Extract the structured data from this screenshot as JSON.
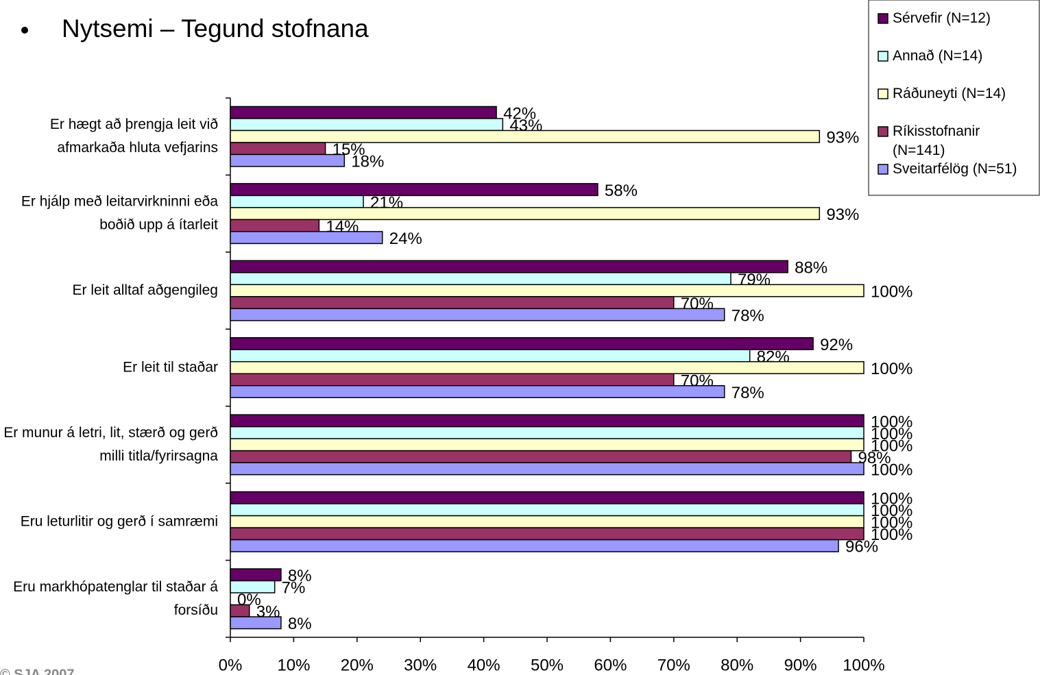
{
  "chart_data": {
    "type": "bar",
    "orientation": "horizontal",
    "title": "Nytsemi – Tegund stofnana",
    "footer": "© SJA 2007",
    "categories": [
      "Er hægt að þrengja leit við afmarkaða hluta vefjarins",
      "Er hjálp með leitarvirkninni eða boðið upp á ítarleit",
      "Er leit alltaf aðgengileg",
      "Er leit til staðar",
      "Er munur á letri, lit, stærð og gerð milli titla/fyrirsagna",
      "Eru leturlitir og gerð í samræmi",
      "Eru markhópatenglar til staðar á forsíðu"
    ],
    "series": [
      {
        "name": "Sérvefir (N=12)",
        "color": "#660066",
        "values": [
          42,
          58,
          88,
          92,
          100,
          100,
          8
        ],
        "value_labels": [
          "42%",
          "58%",
          "88%",
          "92%",
          "100%",
          "100%",
          "8%"
        ]
      },
      {
        "name": "Annað (N=14)",
        "color": "#ccffff",
        "values": [
          43,
          21,
          79,
          82,
          100,
          100,
          7
        ],
        "value_labels": [
          "43%",
          "21%",
          "79%",
          "82%",
          "100%",
          "100%",
          "7%"
        ]
      },
      {
        "name": "Ráðuneyti (N=14)",
        "color": "#ffffcc",
        "values": [
          93,
          93,
          100,
          100,
          100,
          100,
          0
        ],
        "value_labels": [
          "93%",
          "93%",
          "100%",
          "100%",
          "100%",
          "100%",
          "0%"
        ]
      },
      {
        "name": "Ríkisstofnanir (N=141)",
        "color": "#993366",
        "values": [
          15,
          14,
          70,
          70,
          98,
          100,
          3
        ],
        "value_labels": [
          "15%",
          "14%",
          "70%",
          "70%",
          "98%",
          "100%",
          "3%"
        ]
      },
      {
        "name": "Sveitarfélög (N=51)",
        "color": "#9999ff",
        "values": [
          18,
          24,
          78,
          78,
          100,
          96,
          8
        ],
        "value_labels": [
          "18%",
          "24%",
          "78%",
          "78%",
          "100%",
          "96%",
          "8%"
        ]
      }
    ],
    "xlim": [
      0,
      100
    ],
    "xticks": [
      {
        "value": 0,
        "label": "0%"
      },
      {
        "value": 10,
        "label": "10%"
      },
      {
        "value": 20,
        "label": "20%"
      },
      {
        "value": 30,
        "label": "30%"
      },
      {
        "value": 40,
        "label": "40%"
      },
      {
        "value": 50,
        "label": "50%"
      },
      {
        "value": 60,
        "label": "60%"
      },
      {
        "value": 70,
        "label": "70%"
      },
      {
        "value": 80,
        "label": "80%"
      },
      {
        "value": 90,
        "label": "90%"
      },
      {
        "value": 100,
        "label": "100%"
      }
    ],
    "legend": "top-right",
    "grid": false
  }
}
